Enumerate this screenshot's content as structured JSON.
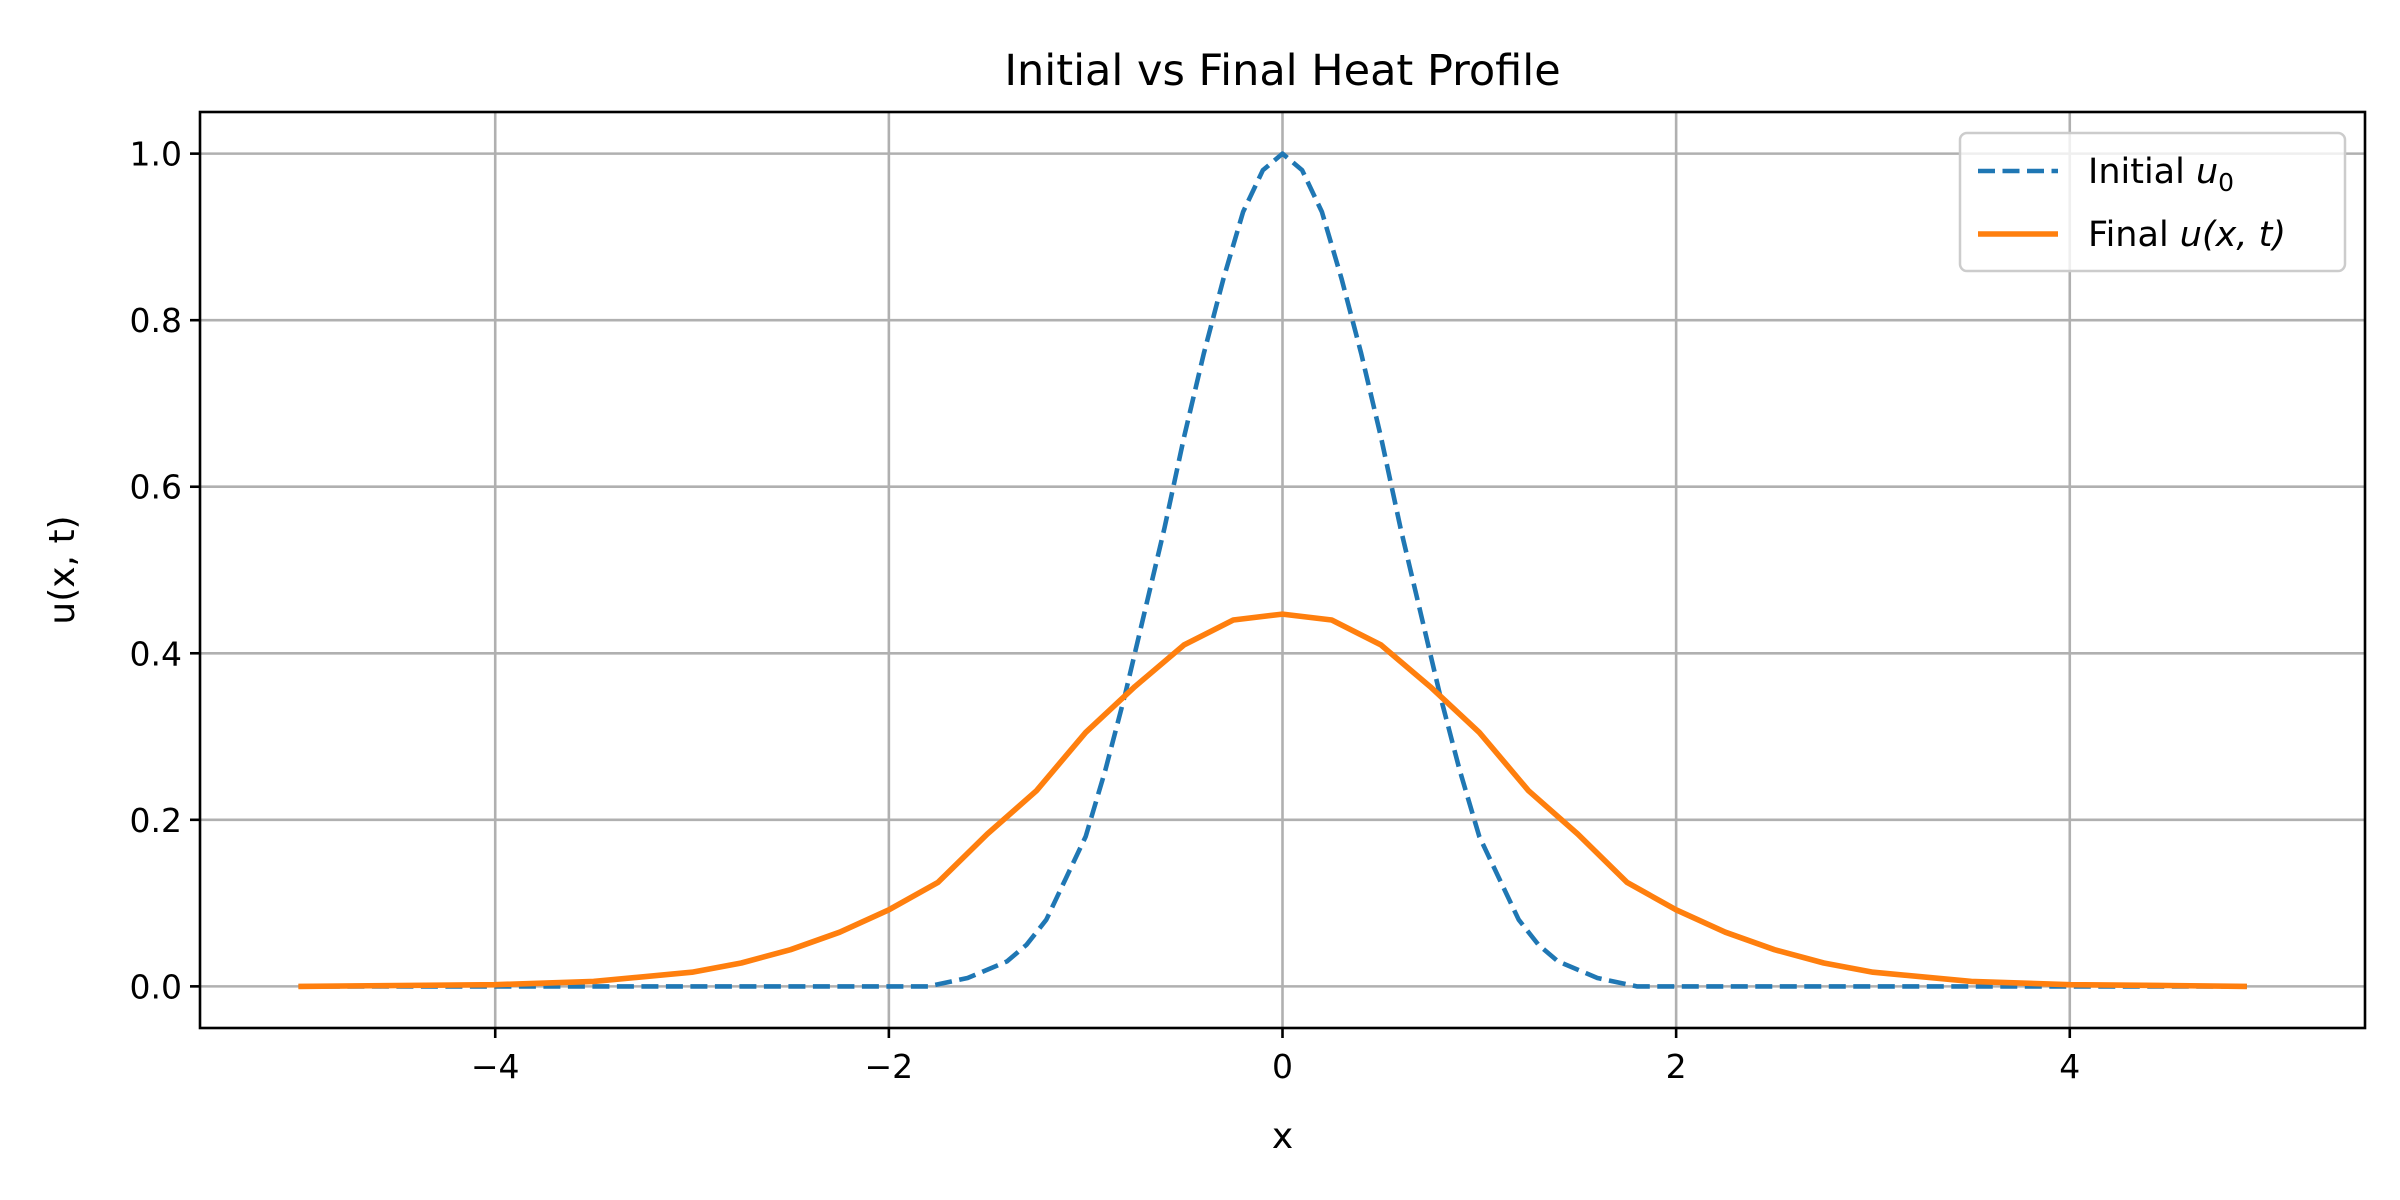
{
  "chart_data": {
    "type": "line",
    "title": "Initial vs Final Heat Profile",
    "xlabel": "x",
    "ylabel": "u(x, t)",
    "xlim": [
      -5.5,
      5.5
    ],
    "ylim": [
      -0.05,
      1.05
    ],
    "xticks": [
      -4,
      -2,
      0,
      2,
      4
    ],
    "xtick_labels": [
      "−4",
      "−2",
      "0",
      "2",
      "4"
    ],
    "yticks": [
      0.0,
      0.2,
      0.4,
      0.6,
      0.8,
      1.0
    ],
    "ytick_labels": [
      "0.0",
      "0.2",
      "0.4",
      "0.6",
      "0.8",
      "1.0"
    ],
    "grid": true,
    "legend_position": "top-right",
    "series": [
      {
        "name": "Initial u₀",
        "legend_main": "Initial ",
        "legend_math": "u",
        "legend_sub": "0",
        "legend_tail": "",
        "style": "dashed",
        "color": "#1f77b4",
        "x": [
          -5.0,
          -4.0,
          -3.0,
          -2.5,
          -2.0,
          -1.8,
          -1.6,
          -1.4,
          -1.3,
          -1.2,
          -1.1,
          -1.0,
          -0.9,
          -0.8,
          -0.7,
          -0.6,
          -0.5,
          -0.4,
          -0.3,
          -0.2,
          -0.1,
          0.0,
          0.1,
          0.2,
          0.3,
          0.4,
          0.5,
          0.6,
          0.7,
          0.8,
          0.9,
          1.0,
          1.1,
          1.2,
          1.3,
          1.4,
          1.6,
          1.8,
          2.0,
          2.5,
          3.0,
          4.0,
          4.9
        ],
        "y": [
          0.0,
          0.0,
          0.0,
          0.0,
          0.0,
          0.0,
          0.01,
          0.03,
          0.05,
          0.08,
          0.13,
          0.18,
          0.26,
          0.35,
          0.45,
          0.55,
          0.66,
          0.76,
          0.85,
          0.93,
          0.98,
          1.0,
          0.98,
          0.93,
          0.85,
          0.76,
          0.66,
          0.55,
          0.45,
          0.35,
          0.26,
          0.18,
          0.13,
          0.08,
          0.05,
          0.03,
          0.01,
          0.0,
          0.0,
          0.0,
          0.0,
          0.0,
          0.0
        ]
      },
      {
        "name": "Final u(x,t)",
        "legend_main": "Final ",
        "legend_math": "u",
        "legend_sub": "",
        "legend_tail": "(x, t)",
        "style": "solid",
        "color": "#ff7f0e",
        "x": [
          -5.0,
          -4.5,
          -4.0,
          -3.5,
          -3.0,
          -2.75,
          -2.5,
          -2.25,
          -2.0,
          -1.75,
          -1.5,
          -1.25,
          -1.0,
          -0.75,
          -0.5,
          -0.25,
          0.0,
          0.25,
          0.5,
          0.75,
          1.0,
          1.25,
          1.5,
          1.75,
          2.0,
          2.25,
          2.5,
          2.75,
          3.0,
          3.5,
          4.0,
          4.5,
          4.9
        ],
        "y": [
          0.0,
          0.001,
          0.002,
          0.006,
          0.017,
          0.028,
          0.044,
          0.065,
          0.092,
          0.125,
          0.183,
          0.235,
          0.305,
          0.36,
          0.41,
          0.44,
          0.447,
          0.44,
          0.41,
          0.36,
          0.305,
          0.235,
          0.183,
          0.125,
          0.092,
          0.065,
          0.044,
          0.028,
          0.017,
          0.006,
          0.002,
          0.001,
          0.0
        ]
      }
    ]
  }
}
